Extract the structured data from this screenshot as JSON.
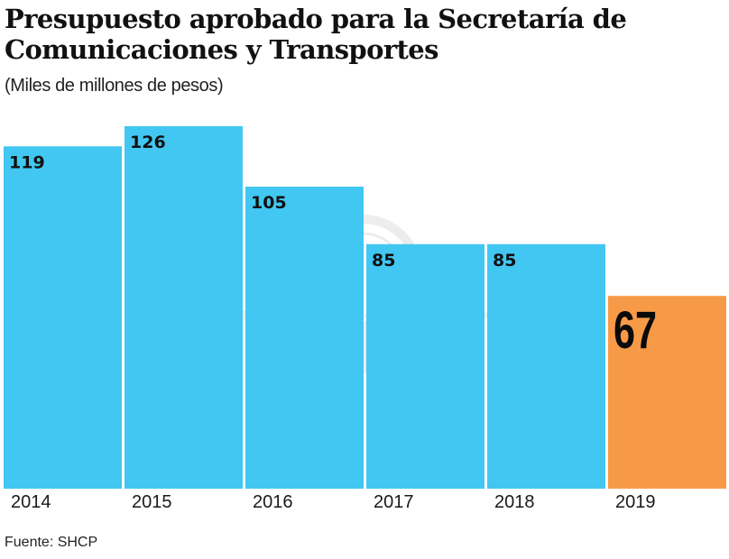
{
  "header": {
    "title": "Presupuesto aprobado para la Secretaría de Comunicaciones y Transportes",
    "subtitle": "(Miles de millones de pesos)"
  },
  "footer": {
    "source": "Fuente: SHCP"
  },
  "colors": {
    "default_bar": "#41C7F2",
    "highlight_bar": "#F79A47",
    "text": "#111111"
  },
  "watermark": {
    "icon": "sct-eagle-globe-emblem-icon"
  },
  "chart_data": {
    "type": "bar",
    "title": "Presupuesto aprobado para la Secretaría de Comunicaciones y Transportes",
    "subtitle": "(Miles de millones de pesos)",
    "xlabel": "",
    "ylabel": "",
    "categories": [
      "2014",
      "2015",
      "2016",
      "2017",
      "2018",
      "2019"
    ],
    "values": [
      119,
      126,
      105,
      85,
      85,
      67
    ],
    "data_labels": [
      "119",
      "126",
      "105",
      "85",
      "85",
      "67"
    ],
    "highlight": [
      false,
      false,
      false,
      false,
      false,
      true
    ],
    "ylim": [
      0,
      126
    ],
    "grid": false,
    "legend": "none",
    "source": "Fuente: SHCP"
  }
}
